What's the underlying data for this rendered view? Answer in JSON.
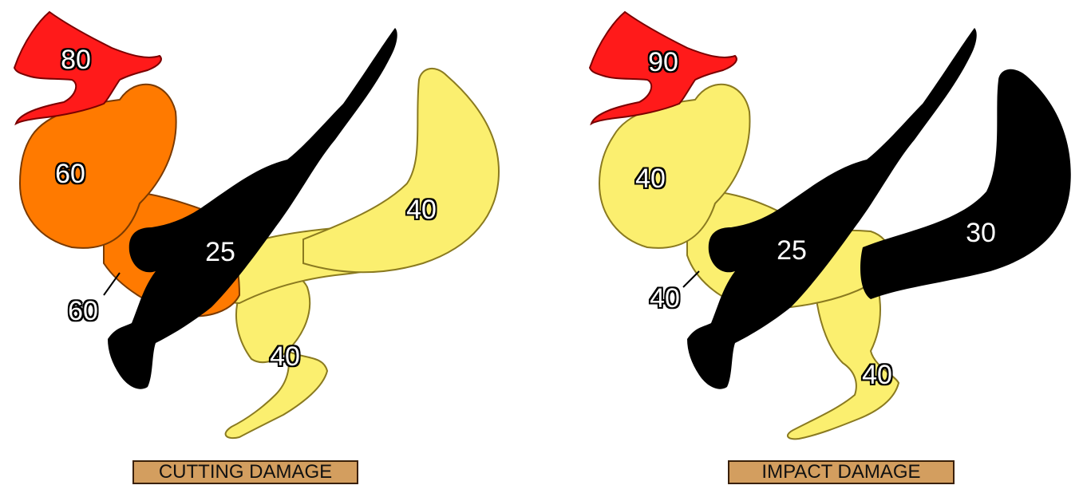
{
  "panels": [
    {
      "caption": "CUTTING DAMAGE",
      "colors": {
        "jaw": "#ff1a1a",
        "head": "#ff7a00",
        "neck": "#ff7a00",
        "arm": "#000000",
        "body": "#fbef6f",
        "legs": "#fbef6f",
        "tail": "#fbef6f"
      },
      "values": {
        "jaw": "80",
        "head": "60",
        "neck": "60",
        "arm": "25",
        "tail": "40",
        "legs": "40"
      }
    },
    {
      "caption": "IMPACT DAMAGE",
      "colors": {
        "jaw": "#ff1a1a",
        "head": "#fbef6f",
        "neck": "#fbef6f",
        "arm": "#000000",
        "body": "#fbef6f",
        "legs": "#fbef6f",
        "tail": "#000000"
      },
      "values": {
        "jaw": "90",
        "head": "40",
        "neck": "40",
        "arm": "25",
        "tail": "30",
        "legs": "40"
      }
    }
  ]
}
